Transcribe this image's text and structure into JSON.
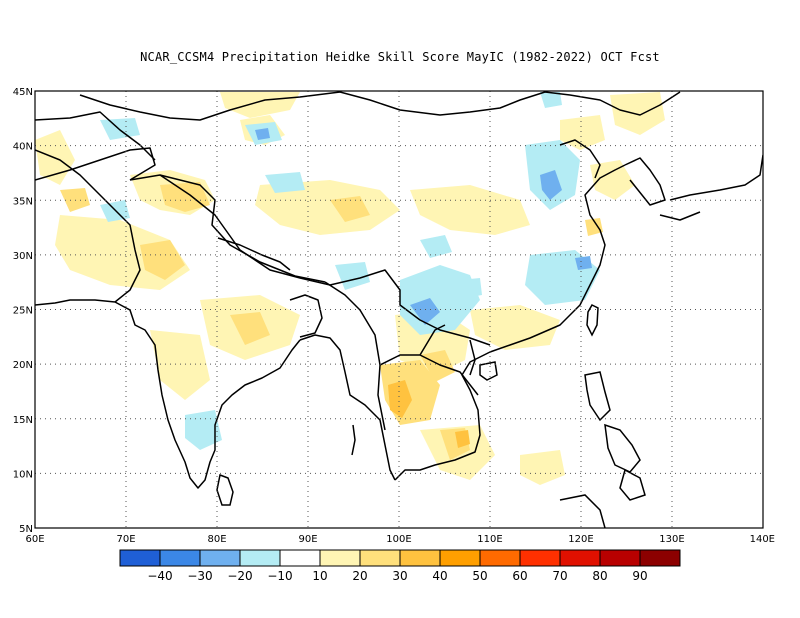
{
  "title": "NCAR_CCSM4  Precipitation Heidke Skill Score MayIC (1982-2022) OCT Fcst",
  "map": {
    "lon_range": [
      60,
      140
    ],
    "lat_range": [
      5,
      45
    ],
    "lon_ticks": [
      "60E",
      "70E",
      "80E",
      "90E",
      "100E",
      "110E",
      "120E",
      "130E",
      "140E"
    ],
    "lat_ticks": [
      "5N",
      "10N",
      "15N",
      "20N",
      "25N",
      "30N",
      "35N",
      "40N",
      "45N"
    ],
    "grid": "dotted"
  },
  "colorbar": {
    "colors": [
      "#1f5fd6",
      "#3b87e6",
      "#6fb0ef",
      "#b4ecf4",
      "#ffffff",
      "#fff5b4",
      "#ffe07c",
      "#ffc23f",
      "#ff9f00",
      "#ff6a00",
      "#ff3000",
      "#e01000",
      "#b80000",
      "#8c0000"
    ],
    "labels": [
      "−40",
      "−30",
      "−20",
      "−10",
      "10",
      "20",
      "30",
      "40",
      "50",
      "60",
      "70",
      "80",
      "90"
    ]
  }
}
